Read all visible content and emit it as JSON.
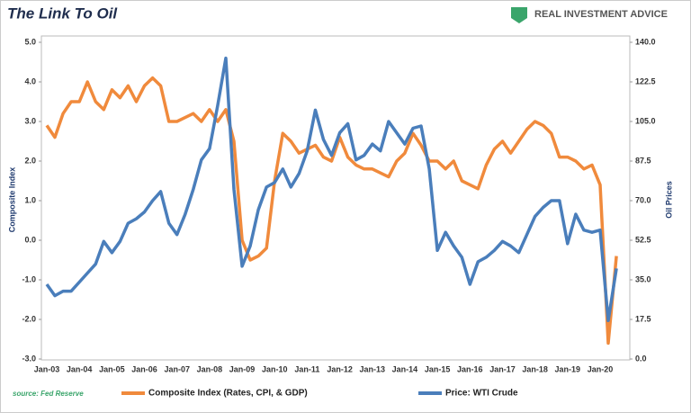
{
  "chart_data": {
    "type": "line",
    "title": "The Link To Oil",
    "logo": "REAL INVESTMENT ADVICE",
    "source": "source: Fed Reserve",
    "ylabel": "Composite Index",
    "y2label": "Oil Prices",
    "categories": [
      "Jan-03",
      null,
      null,
      null,
      "Jan-04",
      null,
      null,
      null,
      "Jan-05",
      null,
      null,
      null,
      "Jan-06",
      null,
      null,
      null,
      "Jan-07",
      null,
      null,
      null,
      "Jan-08",
      null,
      null,
      null,
      "Jan-09",
      null,
      null,
      null,
      "Jan-10",
      null,
      null,
      null,
      "Jan-11",
      null,
      null,
      null,
      "Jan-12",
      null,
      null,
      null,
      "Jan-13",
      null,
      null,
      null,
      "Jan-14",
      null,
      null,
      null,
      "Jan-15",
      null,
      null,
      null,
      "Jan-16",
      null,
      null,
      null,
      "Jan-17",
      null,
      null,
      null,
      "Jan-18",
      null,
      null,
      null,
      "Jan-19",
      null,
      null,
      null,
      "Jan-20",
      null,
      null
    ],
    "series": [
      {
        "name": "Composite Index (Rates, CPI, & GDP)",
        "color": "#f08a3c",
        "values": [
          2.9,
          2.6,
          3.2,
          3.5,
          3.5,
          4.0,
          3.5,
          3.3,
          3.8,
          3.6,
          3.9,
          3.5,
          3.9,
          4.1,
          3.9,
          3.0,
          3.0,
          3.1,
          3.2,
          3.0,
          3.3,
          3.0,
          3.3,
          2.5,
          0.0,
          -0.5,
          -0.4,
          -0.2,
          1.5,
          2.7,
          2.5,
          2.2,
          2.3,
          2.4,
          2.1,
          2.0,
          2.6,
          2.1,
          1.9,
          1.8,
          1.8,
          1.7,
          1.6,
          2.0,
          2.2,
          2.7,
          2.4,
          2.0,
          2.0,
          1.8,
          2.0,
          1.5,
          1.4,
          1.3,
          1.9,
          2.3,
          2.5,
          2.2,
          2.5,
          2.8,
          3.0,
          2.9,
          2.7,
          2.1,
          2.1,
          2.0,
          1.8,
          1.9,
          1.4,
          -2.6,
          -0.4
        ]
      },
      {
        "name": "Price: WTI Crude",
        "color": "#4a7ebb",
        "axis": "y2",
        "values": [
          33,
          28,
          30,
          30,
          34,
          38,
          42,
          52,
          47,
          52,
          60,
          62,
          65,
          70,
          74,
          60,
          55,
          64,
          75,
          88,
          93,
          112,
          133,
          75,
          41,
          50,
          66,
          76,
          78,
          84,
          76,
          82,
          92,
          110,
          97,
          90,
          100,
          104,
          88,
          90,
          95,
          92,
          105,
          100,
          95,
          102,
          103,
          84,
          48,
          56,
          50,
          45,
          33,
          43,
          45,
          48,
          52,
          50,
          47,
          55,
          63,
          67,
          70,
          70,
          51,
          64,
          57,
          56,
          57,
          17,
          40
        ]
      }
    ],
    "ylim": [
      -3,
      5
    ],
    "yticks": [
      {
        "value": -3,
        "label": "-3.0"
      },
      {
        "value": -2,
        "label": "-2.0"
      },
      {
        "value": -1,
        "label": "-1.0"
      },
      {
        "value": 0,
        "label": "0.0"
      },
      {
        "value": 1,
        "label": "1.0"
      },
      {
        "value": 2,
        "label": "2.0"
      },
      {
        "value": 3,
        "label": "3.0"
      },
      {
        "value": 4,
        "label": "4.0"
      },
      {
        "value": 5,
        "label": "5.0"
      }
    ],
    "y2lim": [
      0,
      140
    ],
    "y2ticks": [
      {
        "value": 0,
        "label": "0.0"
      },
      {
        "value": 17.5,
        "label": "17.5"
      },
      {
        "value": 35,
        "label": "35.0"
      },
      {
        "value": 52.5,
        "label": "52.5"
      },
      {
        "value": 70,
        "label": "70.0"
      },
      {
        "value": 87.5,
        "label": "87.5"
      },
      {
        "value": 105,
        "label": "105.0"
      },
      {
        "value": 122.5,
        "label": "122.5"
      },
      {
        "value": 140,
        "label": "140.0"
      }
    ],
    "grid": false
  }
}
